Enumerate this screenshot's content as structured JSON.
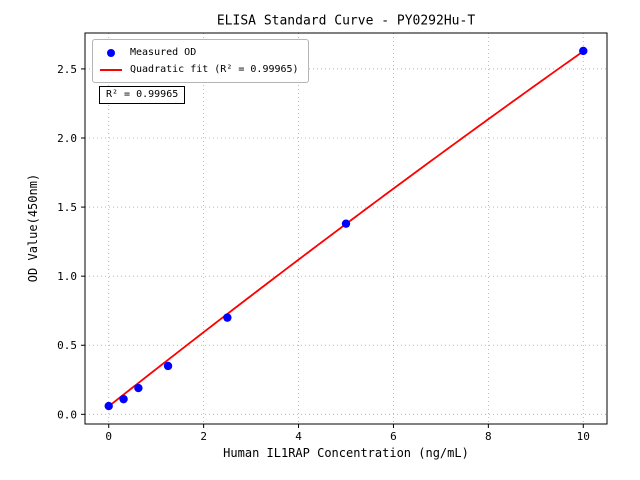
{
  "chart_data": {
    "type": "scatter",
    "title": "ELISA Standard Curve - PY0292Hu-T",
    "xlabel": "Human IL1RAP Concentration (ng/mL)",
    "ylabel": "OD Value(450nm)",
    "xlim": [
      -0.5,
      10.5
    ],
    "ylim": [
      -0.07,
      2.76
    ],
    "xticks": [
      0,
      2,
      4,
      6,
      8,
      10
    ],
    "xtick_labels": [
      "0",
      "2",
      "4",
      "6",
      "8",
      "10"
    ],
    "yticks": [
      0.0,
      0.5,
      1.0,
      1.5,
      2.0,
      2.5
    ],
    "ytick_labels": [
      "0.0",
      "0.5",
      "1.0",
      "1.5",
      "2.0",
      "2.5"
    ],
    "grid": true,
    "grid_style": "dotted",
    "legend_position": "upper-left",
    "series": [
      {
        "name": "Measured OD",
        "type": "scatter",
        "color": "#0000ff",
        "x": [
          0,
          0.3125,
          0.625,
          1.25,
          2.5,
          5,
          10
        ],
        "y": [
          0.06,
          0.11,
          0.19,
          0.35,
          0.7,
          1.38,
          2.63
        ]
      },
      {
        "name": "Quadratic fit (R² = 0.99965)",
        "type": "line",
        "color": "#ff0000",
        "fit": {
          "kind": "quadratic",
          "a": -0.0014,
          "b": 0.271,
          "c": 0.058,
          "x_start": 0,
          "x_end": 10
        }
      }
    ],
    "legend": [
      {
        "label": "Measured OD",
        "marker": "dot",
        "color": "#0000ff"
      },
      {
        "label": "Quadratic fit (R² = 0.99965)",
        "marker": "line",
        "color": "#ff0000"
      }
    ],
    "annotation": "R² = 0.99965",
    "r_squared": 0.99965
  }
}
